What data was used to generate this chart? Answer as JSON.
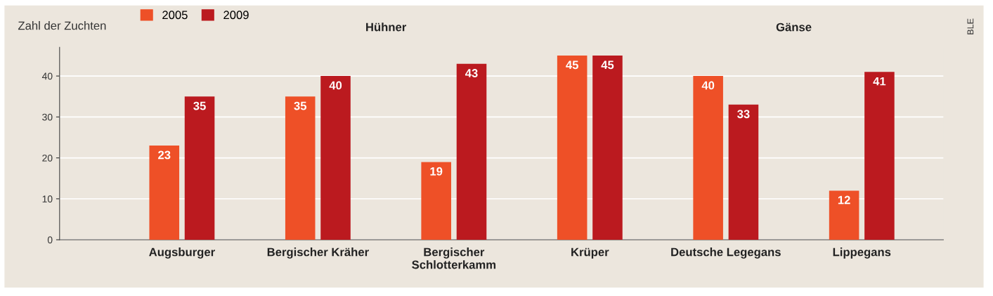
{
  "chart_data": {
    "type": "bar",
    "ylabel": "Zahl der Zuchten",
    "categories": [
      "Augsburger",
      "Bergischer Kräher",
      "Bergischer\nSchlotterkamm",
      "Krüper",
      "Deutsche Legegans",
      "Lippegans"
    ],
    "series": [
      {
        "name": "2005",
        "color": "#ee5027",
        "values": [
          23,
          35,
          19,
          45,
          40,
          12
        ]
      },
      {
        "name": "2009",
        "color": "#bb1a1f",
        "values": [
          35,
          40,
          43,
          45,
          33,
          41
        ]
      }
    ],
    "ylim": [
      0,
      47
    ],
    "yticks": [
      0,
      10,
      20,
      30,
      40
    ],
    "grid": "y",
    "legend": "top left",
    "data_labels": true,
    "annotations": [
      "Hühner",
      "Gänse",
      "BLE"
    ]
  }
}
